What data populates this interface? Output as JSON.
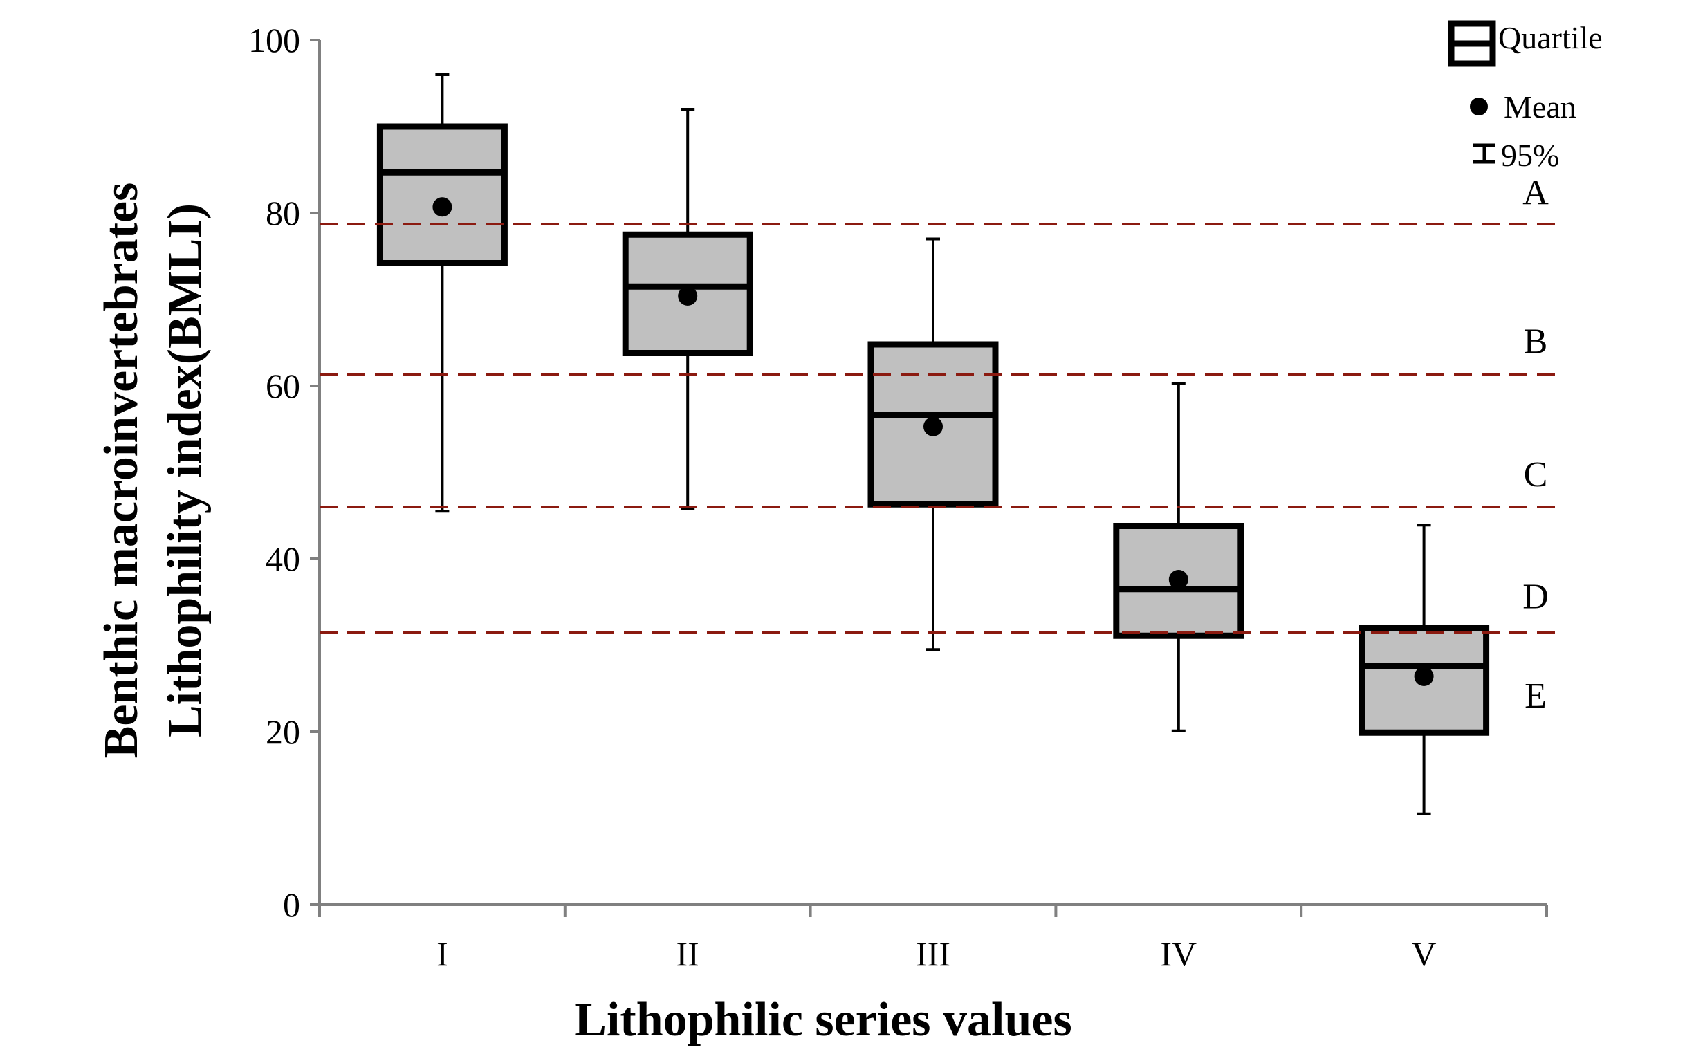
{
  "chart_data": {
    "type": "box",
    "xlabel": "Lithophilic series values",
    "ylabel_lines": [
      "Benthic macroinvertebrates",
      "Lithophility index(BMLI)"
    ],
    "ylim": [
      0,
      100
    ],
    "yticks": [
      0,
      20,
      40,
      60,
      80,
      100
    ],
    "categories": [
      "I",
      "II",
      "III",
      "IV",
      "V"
    ],
    "boxes": [
      {
        "category": "I",
        "whisker_low": 45.5,
        "q1": 74.2,
        "median": 84.7,
        "q3": 90.0,
        "whisker_high": 96.0,
        "mean": 80.7
      },
      {
        "category": "II",
        "whisker_low": 45.8,
        "q1": 63.8,
        "median": 71.5,
        "q3": 77.5,
        "whisker_high": 92.0,
        "mean": 70.4
      },
      {
        "category": "III",
        "whisker_low": 29.5,
        "q1": 46.3,
        "median": 56.6,
        "q3": 64.8,
        "whisker_high": 77.0,
        "mean": 55.3
      },
      {
        "category": "IV",
        "whisker_low": 20.1,
        "q1": 31.1,
        "median": 36.5,
        "q3": 43.8,
        "whisker_high": 60.3,
        "mean": 37.6
      },
      {
        "category": "V",
        "whisker_low": 10.5,
        "q1": 19.9,
        "median": 27.6,
        "q3": 32.0,
        "whisker_high": 43.9,
        "mean": 26.4
      }
    ],
    "thresholds": [
      {
        "value": 78.7,
        "label": "A"
      },
      {
        "value": 61.3,
        "label": "B"
      },
      {
        "value": 46.0,
        "label": "C"
      },
      {
        "value": 31.5,
        "label": "D"
      }
    ],
    "grade_labels": [
      {
        "label": "A",
        "value": 81.0
      },
      {
        "label": "B",
        "value": 63.8
      },
      {
        "label": "C",
        "value": 48.4
      },
      {
        "label": "D",
        "value": 34.3
      },
      {
        "label": "E",
        "value": 22.8
      }
    ],
    "legend": {
      "quartile": "Quartile",
      "mean": "Mean",
      "ci": "95%",
      "position": "top-right"
    },
    "colors": {
      "box_fill": "#c0c0c0",
      "threshold_line": "#8b1a10",
      "axis": "#808080"
    },
    "grid": false
  }
}
